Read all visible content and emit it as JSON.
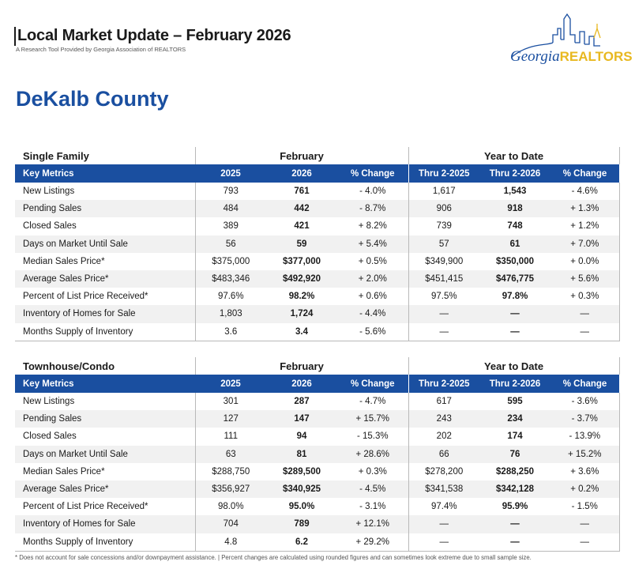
{
  "header": {
    "title": "Local Market Update – February 2026",
    "subtitle": "A Research Tool Provided by Georgia Association of REALTORS",
    "county": "DeKalb County",
    "logo": {
      "georgia": "Georgia",
      "realtors": "REALTORS",
      "icon": "city-skyline-icon"
    }
  },
  "columns": {
    "key_metrics": "Key Metrics",
    "february": "February",
    "ytd": "Year to Date",
    "y2025": "2025",
    "y2026": "2026",
    "pct": "% Change",
    "thru2025": "Thru 2-2025",
    "thru2026": "Thru 2-2026"
  },
  "single_family": {
    "title": "Single Family",
    "rows": [
      [
        "New Listings",
        "793",
        "761",
        "- 4.0%",
        "1,617",
        "1,543",
        "- 4.6%"
      ],
      [
        "Pending Sales",
        "484",
        "442",
        "- 8.7%",
        "906",
        "918",
        "+ 1.3%"
      ],
      [
        "Closed Sales",
        "389",
        "421",
        "+ 8.2%",
        "739",
        "748",
        "+ 1.2%"
      ],
      [
        "Days on Market Until Sale",
        "56",
        "59",
        "+ 5.4%",
        "57",
        "61",
        "+ 7.0%"
      ],
      [
        "Median Sales Price*",
        "$375,000",
        "$377,000",
        "+ 0.5%",
        "$349,900",
        "$350,000",
        "+ 0.0%"
      ],
      [
        "Average Sales Price*",
        "$483,346",
        "$492,920",
        "+ 2.0%",
        "$451,415",
        "$476,775",
        "+ 5.6%"
      ],
      [
        "Percent of List Price Received*",
        "97.6%",
        "98.2%",
        "+ 0.6%",
        "97.5%",
        "97.8%",
        "+ 0.3%"
      ],
      [
        "Inventory of Homes for Sale",
        "1,803",
        "1,724",
        "- 4.4%",
        "—",
        "—",
        "—"
      ],
      [
        "Months Supply of Inventory",
        "3.6",
        "3.4",
        "- 5.6%",
        "—",
        "—",
        "—"
      ]
    ]
  },
  "townhouse": {
    "title": "Townhouse/Condo",
    "rows": [
      [
        "New Listings",
        "301",
        "287",
        "- 4.7%",
        "617",
        "595",
        "- 3.6%"
      ],
      [
        "Pending Sales",
        "127",
        "147",
        "+ 15.7%",
        "243",
        "234",
        "- 3.7%"
      ],
      [
        "Closed Sales",
        "111",
        "94",
        "- 15.3%",
        "202",
        "174",
        "- 13.9%"
      ],
      [
        "Days on Market Until Sale",
        "63",
        "81",
        "+ 28.6%",
        "66",
        "76",
        "+ 15.2%"
      ],
      [
        "Median Sales Price*",
        "$288,750",
        "$289,500",
        "+ 0.3%",
        "$278,200",
        "$288,250",
        "+ 3.6%"
      ],
      [
        "Average Sales Price*",
        "$356,927",
        "$340,925",
        "- 4.5%",
        "$341,538",
        "$342,128",
        "+ 0.2%"
      ],
      [
        "Percent of List Price Received*",
        "98.0%",
        "95.0%",
        "- 3.1%",
        "97.4%",
        "95.9%",
        "- 1.5%"
      ],
      [
        "Inventory of Homes for Sale",
        "704",
        "789",
        "+ 12.1%",
        "—",
        "—",
        "—"
      ],
      [
        "Months Supply of Inventory",
        "4.8",
        "6.2",
        "+ 29.2%",
        "—",
        "—",
        "—"
      ]
    ]
  },
  "footnote": "* Does not account for sale concessions and/or downpayment assistance. | Percent changes are calculated using rounded figures and can sometimes look extreme due to small sample size."
}
